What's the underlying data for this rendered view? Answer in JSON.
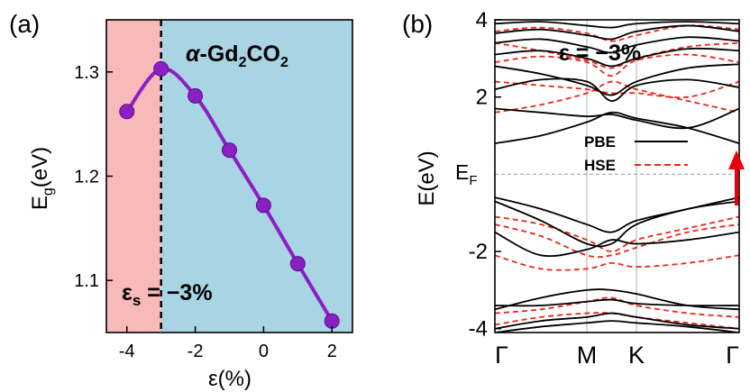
{
  "colors": {
    "shade_left": "#f8b9b9",
    "shade_right": "#a9d4e3",
    "curve": "#8a1fc4",
    "point": "#8a1fc4",
    "pbe": "#000000",
    "hse": "#e8281c",
    "arrow": "#e8000b",
    "grid": "#b0b0b0"
  },
  "chart_data": [
    {
      "type": "line",
      "panel_label": "(a)",
      "title_prefix": "α-Gd",
      "title_sub1": "2",
      "title_mid": "CO",
      "title_sub2": "2",
      "xlabel": "ε(%)",
      "ylabel_main": "E",
      "ylabel_sub": "g",
      "ylabel_unit": "(eV)",
      "xlim": [
        -4.6,
        2.6
      ],
      "ylim": [
        1.05,
        1.35
      ],
      "xticks": [
        -4,
        -2,
        0,
        2
      ],
      "xtick_labels": [
        "-4",
        "-2",
        "0",
        "2"
      ],
      "yticks": [
        1.1,
        1.2,
        1.3
      ],
      "ytick_labels": [
        "1.1",
        "1.2",
        "1.3"
      ],
      "x": [
        -4,
        -3,
        -2,
        -1,
        0,
        1,
        2
      ],
      "y": [
        1.262,
        1.303,
        1.277,
        1.225,
        1.172,
        1.116,
        1.061
      ],
      "critical_strain": -3,
      "annotation_main": "ε",
      "annotation_sub": "s",
      "annotation_value": " = −3%"
    },
    {
      "type": "line",
      "panel_label": "(b)",
      "ylabel": "E(eV)",
      "ylim": [
        -4.1,
        4.0
      ],
      "xtick_labels": [
        "Γ",
        "M",
        "K",
        "Γ"
      ],
      "yticks": [
        -4,
        -2,
        2,
        4
      ],
      "ytick_labels": [
        "-4",
        "-2",
        "2",
        "4"
      ],
      "fermi_label_main": "E",
      "fermi_label_sub": "F",
      "strain_label": "ε = −3%",
      "legend": [
        "PBE",
        "HSE"
      ],
      "series": [
        {
          "name": "PBE",
          "values": [
            [
              0.8,
              1.0,
              1.35,
              1.6,
              1.45,
              1.2,
              0.8
            ],
            [
              1.7,
              1.6,
              1.5,
              1.55,
              1.4,
              1.2,
              1.7
            ],
            [
              2.2,
              2.45,
              2.4,
              1.9,
              2.3,
              2.45,
              2.25
            ],
            [
              2.8,
              2.6,
              2.3,
              2.05,
              2.4,
              2.75,
              2.85
            ],
            [
              3.1,
              3.2,
              3.0,
              2.8,
              3.0,
              3.25,
              3.2
            ],
            [
              3.4,
              3.5,
              3.3,
              3.15,
              3.35,
              3.55,
              3.45
            ],
            [
              3.65,
              3.75,
              3.6,
              3.5,
              3.7,
              3.85,
              3.7
            ],
            [
              3.9,
              3.95,
              3.85,
              3.8,
              3.9,
              3.95,
              3.9
            ],
            [
              -0.6,
              -0.9,
              -1.3,
              -1.5,
              -1.2,
              -0.9,
              -0.6
            ],
            [
              -0.7,
              -1.2,
              -1.8,
              -1.8,
              -1.3,
              -0.9,
              -0.7
            ],
            [
              -1.5,
              -2.1,
              -1.95,
              -1.7,
              -1.8,
              -1.7,
              -1.5
            ],
            [
              -3.4,
              -3.4,
              -3.3,
              -3.25,
              -3.35,
              -3.4,
              -3.4
            ],
            [
              -3.5,
              -3.2,
              -3.0,
              -3.0,
              -3.1,
              -3.4,
              -3.5
            ],
            [
              -4.0,
              -3.8,
              -3.7,
              -3.6,
              -3.7,
              -3.9,
              -4.0
            ],
            [
              -4.1,
              -3.95,
              -3.85,
              -3.8,
              -3.85,
              -3.95,
              -4.1
            ]
          ]
        },
        {
          "name": "HSE",
          "values": [
            [
              1.6,
              1.8,
              2.1,
              2.4,
              2.2,
              1.9,
              1.6
            ],
            [
              2.4,
              2.3,
              2.2,
              2.1,
              2.1,
              2.0,
              2.4
            ],
            [
              2.9,
              3.05,
              2.9,
              2.55,
              2.95,
              3.1,
              2.9
            ],
            [
              3.4,
              3.2,
              2.95,
              2.75,
              3.0,
              3.3,
              3.4
            ],
            [
              3.7,
              3.8,
              3.65,
              3.45,
              3.6,
              3.85,
              3.75
            ],
            [
              -1.1,
              -1.3,
              -1.7,
              -2.0,
              -1.7,
              -1.4,
              -1.1
            ],
            [
              -1.3,
              -1.6,
              -2.1,
              -2.1,
              -1.9,
              -1.5,
              -1.3
            ],
            [
              -2.1,
              -2.45,
              -2.45,
              -2.3,
              -2.4,
              -2.3,
              -2.1
            ],
            [
              -3.6,
              -3.5,
              -3.3,
              -3.2,
              -3.4,
              -3.6,
              -3.7
            ],
            [
              -3.9,
              -3.7,
              -3.6,
              -3.6,
              -3.7,
              -3.85,
              -4.0
            ]
          ]
        }
      ]
    }
  ]
}
